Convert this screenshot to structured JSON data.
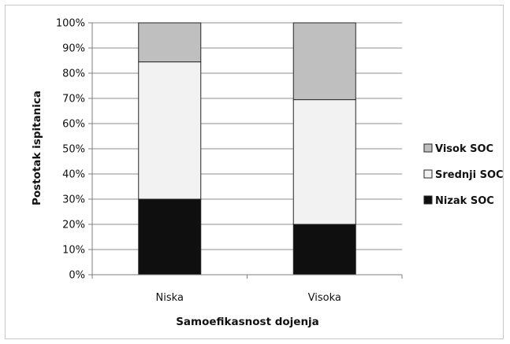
{
  "chart_data": {
    "type": "bar",
    "stacked": true,
    "normalized_percent": true,
    "categories": [
      "Niska",
      "Visoka"
    ],
    "series": [
      {
        "name": "Nizak SOC",
        "values": [
          30,
          20
        ],
        "color": "#0f0f0f"
      },
      {
        "name": "Srednji SOC",
        "values": [
          54.5,
          49.5
        ],
        "color": "#f2f2f2"
      },
      {
        "name": "Visok SOC",
        "values": [
          15.5,
          30.5
        ],
        "color": "#bfbfbf"
      }
    ],
    "y_ticks": [
      "0%",
      "10%",
      "20%",
      "30%",
      "40%",
      "50%",
      "60%",
      "70%",
      "80%",
      "90%",
      "100%"
    ],
    "ylim": [
      0,
      100
    ],
    "xlabel": "Samoefikasnost dojenja",
    "ylabel": "Postotak ispitanica",
    "legend_order": [
      "Visok SOC",
      "Srednji SOC",
      "Nizak SOC"
    ],
    "legend_position": "right",
    "grid": true
  }
}
